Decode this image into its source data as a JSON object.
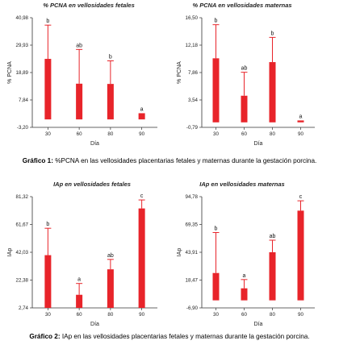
{
  "captions": [
    {
      "label": "Gráfico 1:",
      "text": " %PCNA en las vellosidades placentarias fetales y maternas durante la gestación porcina."
    },
    {
      "label": "Gráfico 2:",
      "text": " IAp en las vellosidades placentarias fetales y maternas durante la gestación porcina."
    }
  ],
  "bar_color": "#e8242a",
  "chart_data": [
    {
      "type": "bar",
      "title": "% PCNA en vellosidades fetales",
      "xlabel": "Día",
      "ylabel": "% PCNA",
      "categories": [
        "30",
        "60",
        "80",
        "90"
      ],
      "yticks": [
        "-3,20",
        "7,84",
        "18,89",
        "29,93",
        "40,98"
      ],
      "ylim": [
        -3.2,
        40.98
      ],
      "values": [
        24.4,
        14.4,
        14.3,
        2.5
      ],
      "error_upper": [
        38.0,
        28.2,
        23.6,
        2.5
      ],
      "letters": [
        "b",
        "ab",
        "b",
        "a"
      ]
    },
    {
      "type": "bar",
      "title": "% PCNA en vellosidades maternas",
      "xlabel": "Día",
      "ylabel": "% PCNA",
      "categories": [
        "30",
        "60",
        "80",
        "90"
      ],
      "yticks": [
        "-0,79",
        "3,54",
        "7,86",
        "12,18",
        "16,50"
      ],
      "ylim": [
        -0.79,
        16.5
      ],
      "values": [
        10.1,
        4.2,
        9.5,
        0.3
      ],
      "error_upper": [
        15.4,
        7.9,
        13.4,
        0.3
      ],
      "letters": [
        "b",
        "ab",
        "b",
        "a"
      ]
    },
    {
      "type": "bar",
      "title": "IAp en vellosidades fetales",
      "xlabel": "Día",
      "ylabel": "IAp",
      "categories": [
        "30",
        "60",
        "80",
        "90"
      ],
      "yticks": [
        "2,74",
        "22,38",
        "42,03",
        "61,67",
        "81,32"
      ],
      "ylim": [
        2.74,
        81.32
      ],
      "values": [
        40.0,
        12.0,
        30.0,
        73.0
      ],
      "error_upper": [
        59.0,
        20.0,
        37.0,
        79.0
      ],
      "letters": [
        "b",
        "a",
        "ab",
        "c"
      ]
    },
    {
      "type": "bar",
      "title": "IAp en vellosidades maternas",
      "xlabel": "Día",
      "ylabel": "IAp",
      "categories": [
        "30",
        "60",
        "80",
        "90"
      ],
      "yticks": [
        "-6,90",
        "18,47",
        "43,91",
        "69,35",
        "94,78"
      ],
      "ylim": [
        -6.9,
        94.78
      ],
      "values": [
        25.0,
        11.0,
        44.0,
        82.0
      ],
      "error_upper": [
        62.0,
        19.0,
        55.0,
        91.0
      ],
      "letters": [
        "b",
        "a",
        "ab",
        "c"
      ]
    }
  ]
}
